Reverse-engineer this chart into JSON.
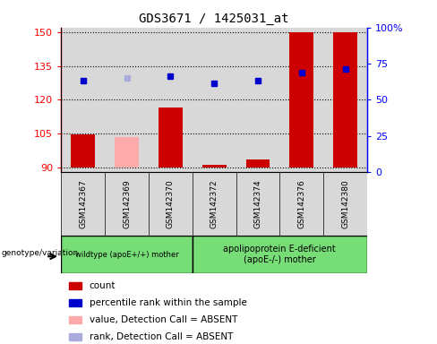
{
  "title": "GDS3671 / 1425031_at",
  "samples": [
    "GSM142367",
    "GSM142369",
    "GSM142370",
    "GSM142372",
    "GSM142374",
    "GSM142376",
    "GSM142380"
  ],
  "bar_values": [
    104.5,
    103.5,
    116.5,
    91.0,
    93.5,
    150.0,
    150.0
  ],
  "bar_colors": [
    "#cc0000",
    "#ffaaaa",
    "#cc0000",
    "#cc0000",
    "#cc0000",
    "#cc0000",
    "#cc0000"
  ],
  "dot_values": [
    63.0,
    65.0,
    66.5,
    61.5,
    63.0,
    69.0,
    71.0
  ],
  "dot_colors": [
    "#0000cc",
    "#aaaadd",
    "#0000cc",
    "#0000cc",
    "#0000cc",
    "#0000cc",
    "#0000cc"
  ],
  "ylim_left": [
    88,
    152
  ],
  "ylim_right": [
    0,
    100
  ],
  "yticks_left": [
    90,
    105,
    120,
    135,
    150
  ],
  "ytick_labels_left": [
    "90",
    "105",
    "120",
    "135",
    "150"
  ],
  "ytick_labels_right": [
    "0",
    "25",
    "50",
    "75",
    "100%"
  ],
  "yticks_right": [
    0,
    25,
    50,
    75,
    100
  ],
  "group1_label": "wildtype (apoE+/+) mother",
  "group2_label": "apolipoprotein E-deficient\n(apoE-/-) mother",
  "group1_indices": [
    0,
    1,
    2
  ],
  "group2_indices": [
    3,
    4,
    5,
    6
  ],
  "genotype_label": "genotype/variation",
  "legend_items": [
    {
      "label": "count",
      "color": "#cc0000",
      "type": "rect"
    },
    {
      "label": "percentile rank within the sample",
      "color": "#0000cc",
      "type": "rect"
    },
    {
      "label": "value, Detection Call = ABSENT",
      "color": "#ffaaaa",
      "type": "rect"
    },
    {
      "label": "rank, Detection Call = ABSENT",
      "color": "#aaaadd",
      "type": "rect"
    }
  ],
  "col_bg": "#d8d8d8",
  "group_bg": "#77dd77",
  "plot_bg": "#ffffff",
  "bar_bottom": 90
}
